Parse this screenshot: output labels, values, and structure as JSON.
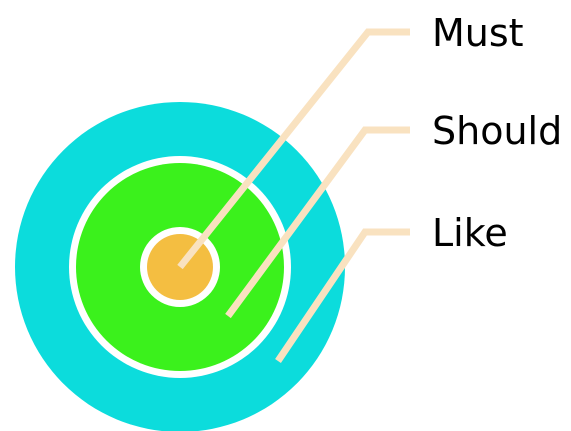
{
  "diagram": {
    "rings": [
      {
        "label": "Must",
        "color": "#F4BE41"
      },
      {
        "label": "Should",
        "color": "#3BF11C"
      },
      {
        "label": "Like",
        "color": "#0CDCDC"
      }
    ],
    "separator_color": "#FFFFFF",
    "leader_color": "#F9E2C0",
    "label_color": "#000000"
  }
}
